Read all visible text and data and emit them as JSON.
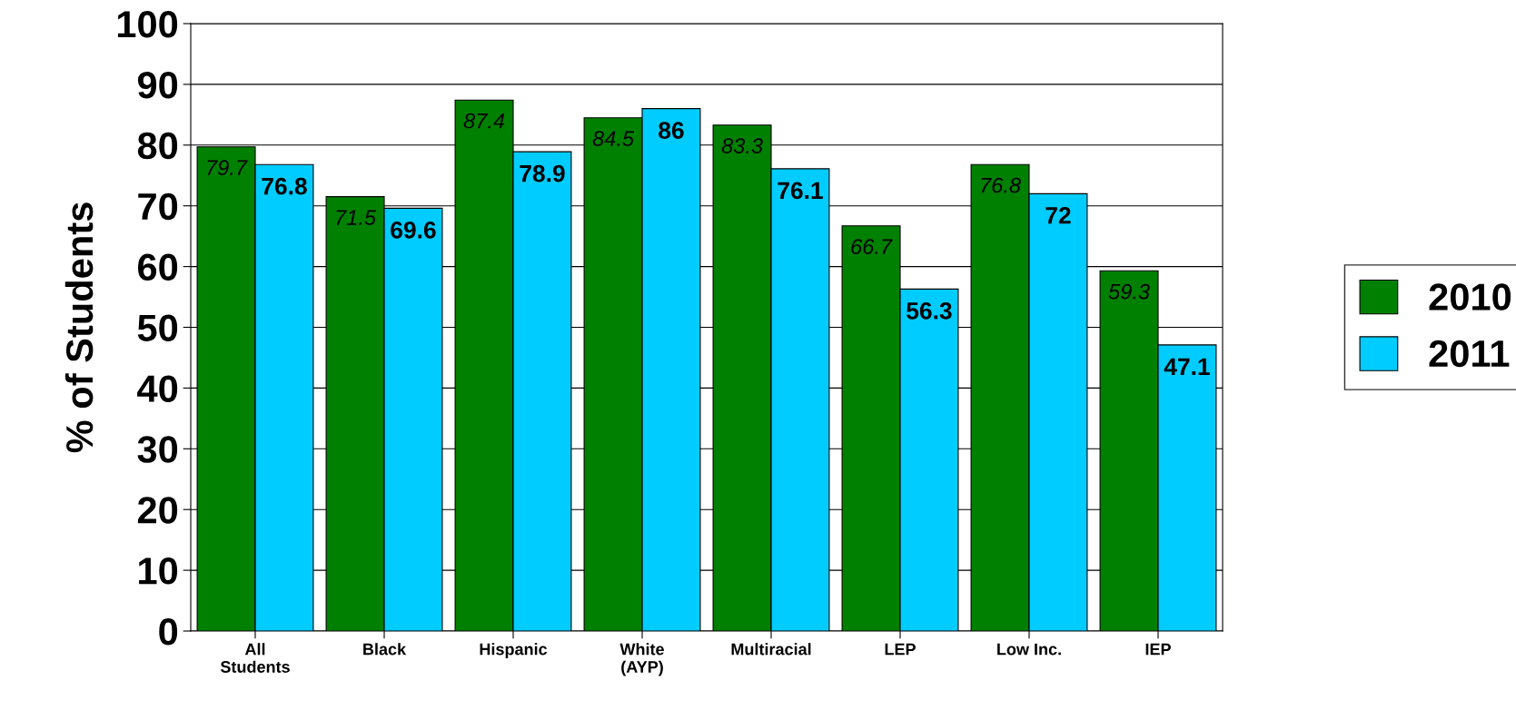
{
  "chart_data": {
    "type": "bar",
    "ylabel": "% of Students",
    "categories": [
      "All\nStudents",
      "Black",
      "Hispanic",
      "White\n(AYP)",
      "Multiracial",
      "LEP",
      "Low Inc.",
      "IEP"
    ],
    "series": [
      {
        "name": "2010",
        "color": "#008000",
        "values": [
          79.7,
          71.5,
          87.4,
          84.5,
          83.3,
          66.7,
          76.8,
          59.3
        ]
      },
      {
        "name": "2011",
        "color": "#00ccff",
        "values": [
          76.8,
          69.6,
          78.9,
          86,
          76.1,
          56.3,
          72,
          47.1
        ]
      }
    ],
    "ylim": [
      0,
      100
    ],
    "yticks": [
      0,
      10,
      20,
      30,
      40,
      50,
      60,
      70,
      80,
      90,
      100
    ],
    "grid": "y",
    "legend": "right",
    "data_labels": true
  }
}
